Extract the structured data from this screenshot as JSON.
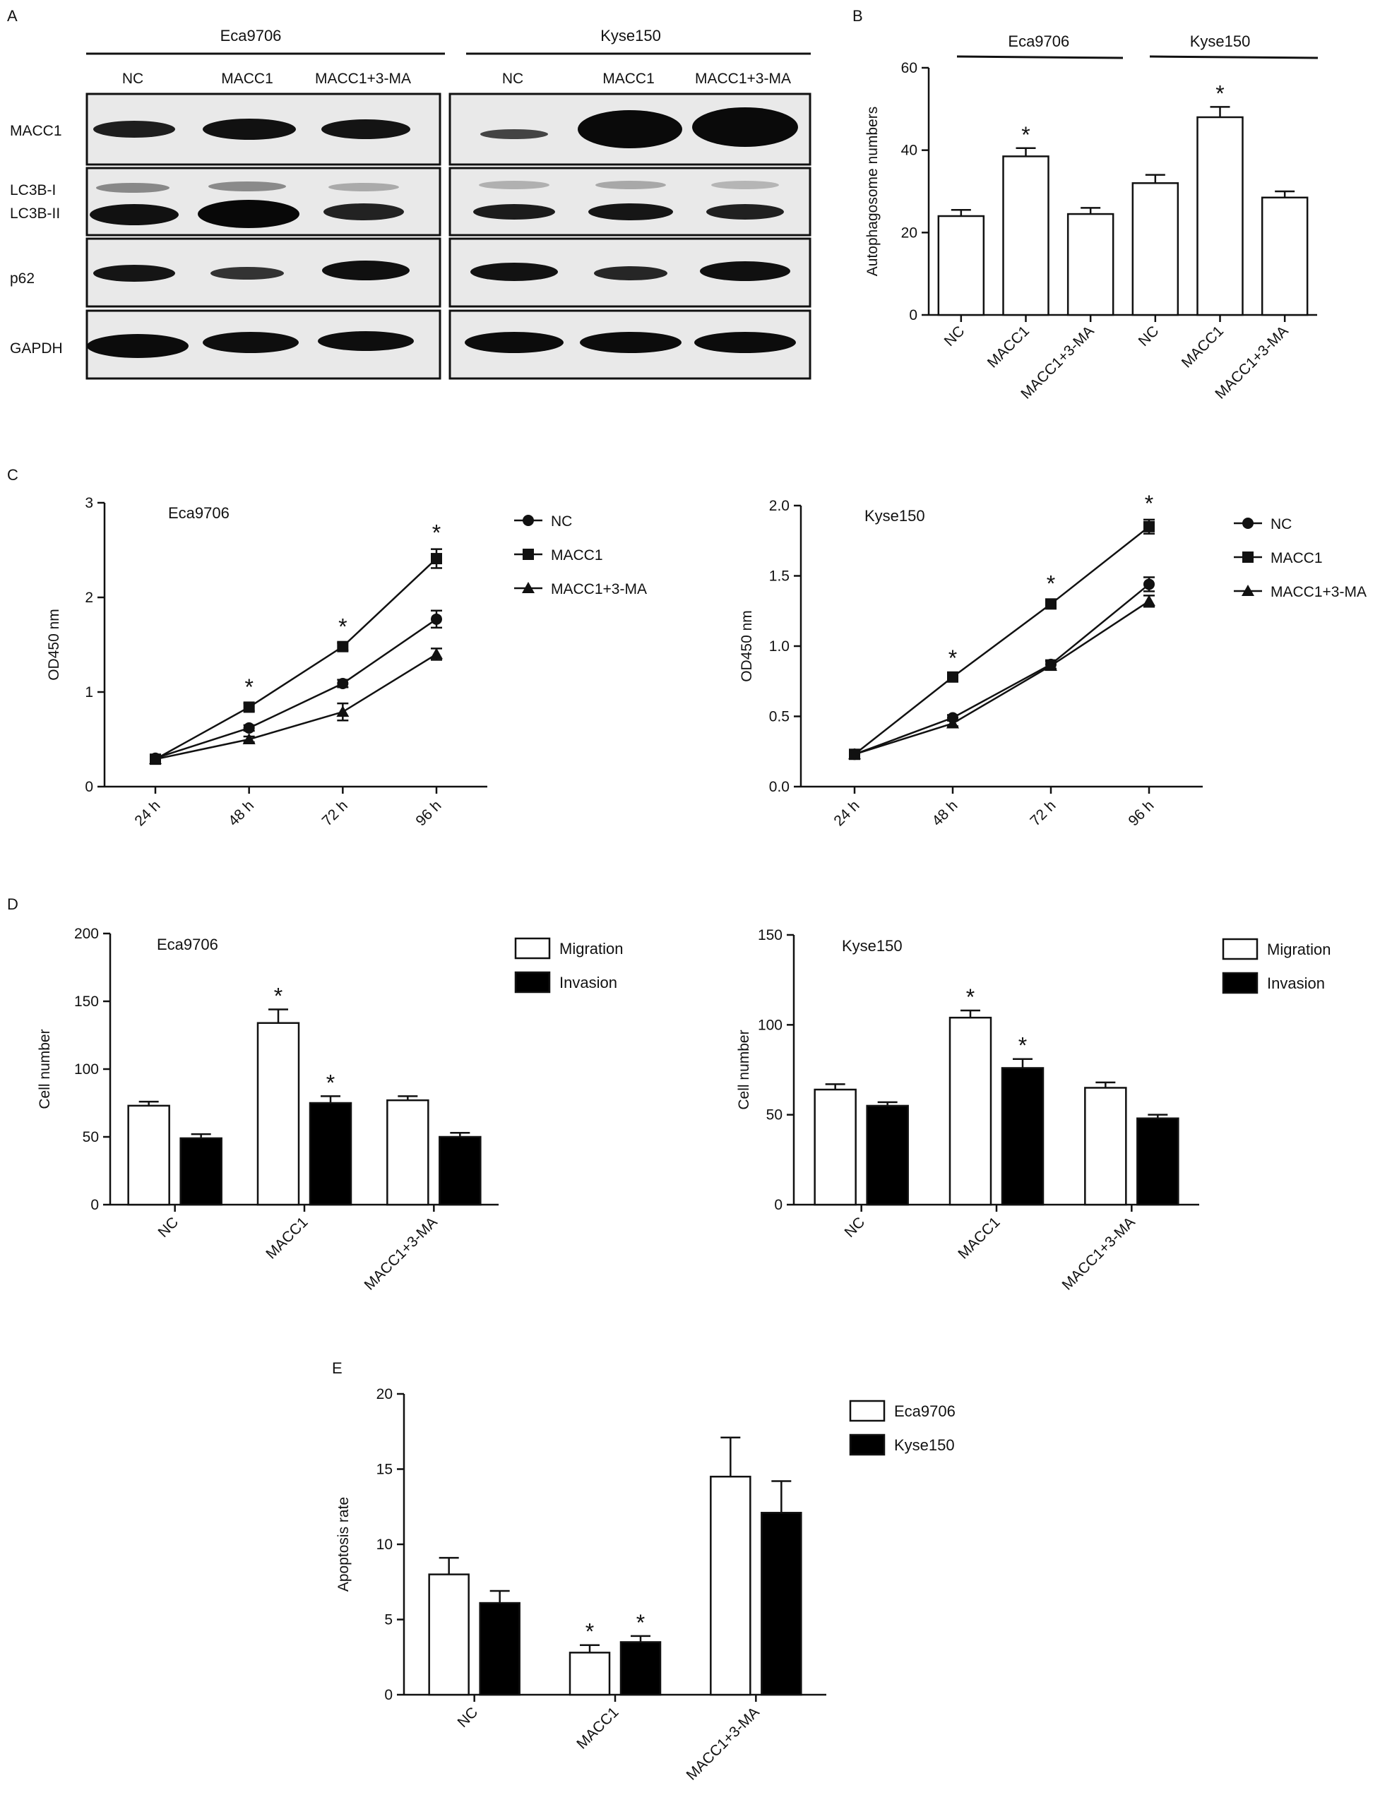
{
  "figure": {
    "panel_letters": [
      "A",
      "B",
      "C",
      "D",
      "E"
    ]
  },
  "blot": {
    "cell_lines": [
      "Eca9706",
      "Kyse150"
    ],
    "lanes": [
      "NC",
      "MACC1",
      "MACC1+3-MA"
    ],
    "rows": [
      "MACC1",
      "LC3B-I",
      "LC3B-II",
      "p62",
      "GAPDH"
    ]
  },
  "chart_data": [
    {
      "panel": "B",
      "type": "bar",
      "groups": [
        "Eca9706",
        "Kyse150"
      ],
      "categories": [
        "NC",
        "MACC1",
        "MACC1+3-MA",
        "NC",
        "MACC1",
        "MACC1+3-MA"
      ],
      "values": [
        24,
        38.5,
        24.5,
        32,
        48,
        28.5
      ],
      "errors": [
        1.5,
        2.0,
        1.5,
        2.0,
        2.5,
        1.5
      ],
      "significant": [
        false,
        true,
        false,
        false,
        true,
        false
      ],
      "ylabel": "Autophagosome numbers",
      "ylim": [
        0,
        60
      ],
      "yticks": [
        0,
        20,
        40,
        60
      ],
      "bar_color": "#ffffff"
    },
    {
      "panel": "C",
      "type": "line",
      "title": "Eca9706",
      "x": [
        "24 h",
        "48 h",
        "72 h",
        "96 h"
      ],
      "series": [
        {
          "name": "NC",
          "marker": "circle",
          "values": [
            0.3,
            0.62,
            1.09,
            1.77
          ],
          "errors": [
            0.02,
            0.03,
            0.04,
            0.09
          ]
        },
        {
          "name": "MACC1",
          "marker": "square",
          "values": [
            0.29,
            0.84,
            1.48,
            2.41
          ],
          "errors": [
            0.02,
            0.04,
            0.04,
            0.1
          ]
        },
        {
          "name": "MACC1+3-MA",
          "marker": "triangle",
          "values": [
            0.29,
            0.5,
            0.79,
            1.4
          ],
          "errors": [
            0.02,
            0.03,
            0.09,
            0.06
          ]
        }
      ],
      "significant": [
        false,
        true,
        true,
        true
      ],
      "ylabel": "OD450 nm",
      "ylim": [
        0,
        3
      ],
      "yticks": [
        0,
        1,
        2,
        3
      ],
      "legend_position": "top-right"
    },
    {
      "panel": "C",
      "type": "line",
      "title": "Kyse150",
      "x": [
        "24 h",
        "48 h",
        "72 h",
        "96 h"
      ],
      "series": [
        {
          "name": "NC",
          "marker": "circle",
          "values": [
            0.23,
            0.49,
            0.87,
            1.44
          ],
          "errors": [
            0.01,
            0.02,
            0.03,
            0.05
          ]
        },
        {
          "name": "MACC1",
          "marker": "square",
          "values": [
            0.23,
            0.78,
            1.3,
            1.85
          ],
          "errors": [
            0.01,
            0.02,
            0.03,
            0.05
          ]
        },
        {
          "name": "MACC1+3-MA",
          "marker": "triangle",
          "values": [
            0.23,
            0.45,
            0.86,
            1.32
          ],
          "errors": [
            0.01,
            0.02,
            0.03,
            0.04
          ]
        }
      ],
      "significant": [
        false,
        true,
        true,
        true
      ],
      "ylabel": "OD450 nm",
      "ylim": [
        0,
        2.0
      ],
      "yticks": [
        "0.0",
        "0.5",
        "1.0",
        "1.5",
        "2.0"
      ],
      "legend_position": "top-right"
    },
    {
      "panel": "D",
      "type": "bar",
      "title": "Eca9706",
      "categories": [
        "NC",
        "MACC1",
        "MACC1+3-MA"
      ],
      "series": [
        {
          "name": "Migration",
          "color": "#ffffff",
          "values": [
            73,
            134,
            77
          ],
          "errors": [
            3,
            10,
            3
          ],
          "significant": [
            false,
            true,
            false
          ]
        },
        {
          "name": "Invasion",
          "color": "#000000",
          "values": [
            49,
            75,
            50
          ],
          "errors": [
            3,
            5,
            3
          ],
          "significant": [
            false,
            true,
            false
          ]
        }
      ],
      "ylabel": "Cell number",
      "ylim": [
        0,
        200
      ],
      "yticks": [
        0,
        50,
        100,
        150,
        200
      ],
      "legend_position": "top-right"
    },
    {
      "panel": "D",
      "type": "bar",
      "title": "Kyse150",
      "categories": [
        "NC",
        "MACC1",
        "MACC1+3-MA"
      ],
      "series": [
        {
          "name": "Migration",
          "color": "#ffffff",
          "values": [
            64,
            104,
            65
          ],
          "errors": [
            3,
            4,
            3
          ],
          "significant": [
            false,
            true,
            false
          ]
        },
        {
          "name": "Invasion",
          "color": "#000000",
          "values": [
            55,
            76,
            48
          ],
          "errors": [
            2,
            5,
            2
          ],
          "significant": [
            false,
            true,
            false
          ]
        }
      ],
      "ylabel": "Cell number",
      "ylim": [
        0,
        150
      ],
      "yticks": [
        0,
        50,
        100,
        150
      ],
      "legend_position": "top-right"
    },
    {
      "panel": "E",
      "type": "bar",
      "categories": [
        "NC",
        "MACC1",
        "MACC1+3-MA"
      ],
      "series": [
        {
          "name": "Eca9706",
          "color": "#ffffff",
          "values": [
            8,
            2.8,
            14.5
          ],
          "errors": [
            1.1,
            0.5,
            2.6
          ],
          "significant": [
            false,
            true,
            false
          ]
        },
        {
          "name": "Kyse150",
          "color": "#000000",
          "values": [
            6.1,
            3.5,
            12.1
          ],
          "errors": [
            0.8,
            0.4,
            2.1
          ],
          "significant": [
            false,
            true,
            false
          ]
        }
      ],
      "ylabel": "Apoptosis rate",
      "ylim": [
        0,
        20
      ],
      "yticks": [
        0,
        5,
        10,
        15,
        20
      ],
      "legend_position": "top-right"
    }
  ]
}
